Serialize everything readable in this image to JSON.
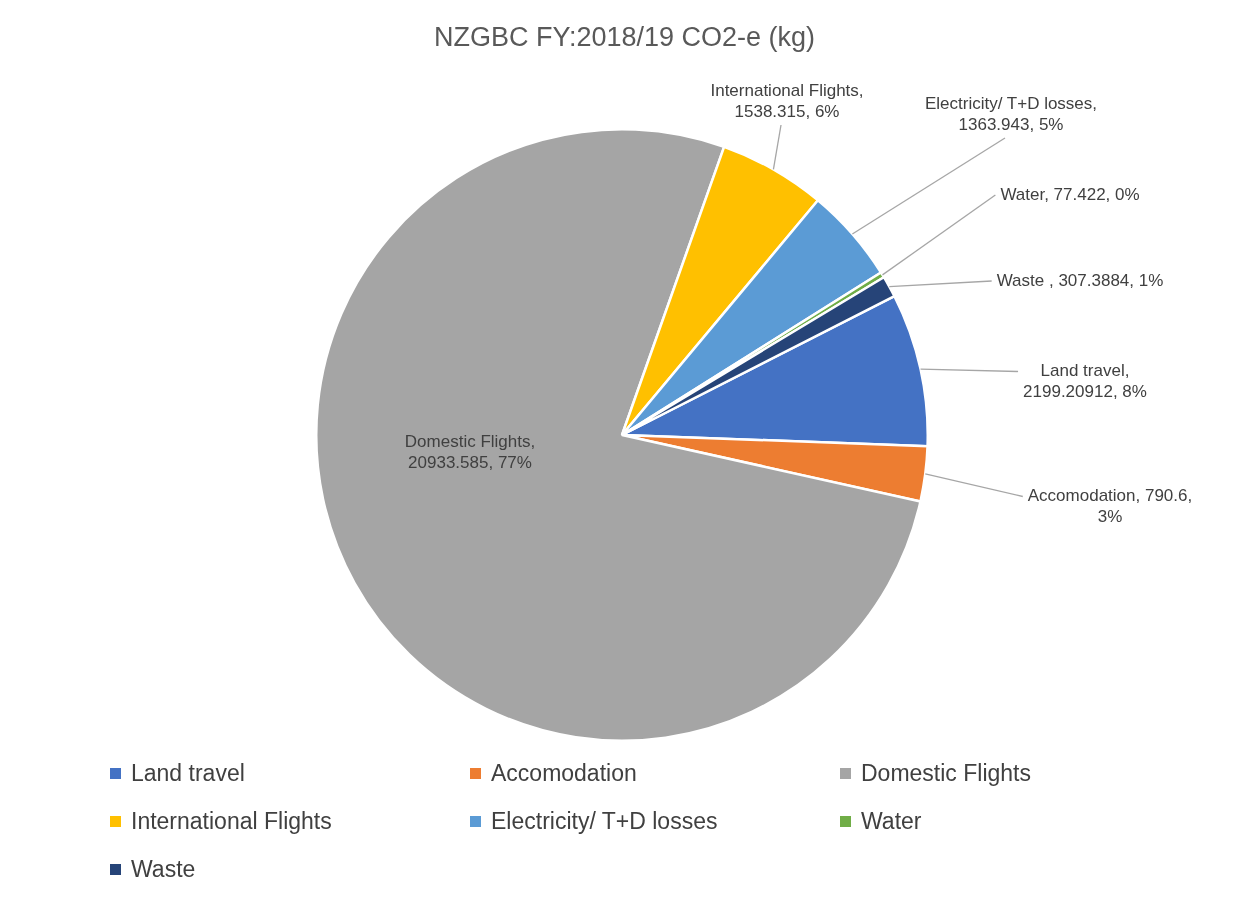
{
  "chart_data": {
    "type": "pie",
    "title": "NZGBC FY:2018/19 CO2-e (kg)",
    "categories": [
      "Land travel",
      "Accomodation",
      "Domestic Flights",
      "International Flights",
      "Electricity/ T+D losses",
      "Water",
      "Waste"
    ],
    "values": [
      2199.20912,
      790.6,
      20933.585,
      1538.315,
      1363.943,
      77.422,
      307.3884
    ],
    "value_labels": [
      "Land travel, 2199.20912, 8%",
      "Accomodation, 790.6, 3%",
      "Domestic Flights, 20933.585, 77%",
      "International Flights, 1538.315, 6%",
      "Electricity/ T+D losses, 1363.943, 5%",
      "Water, 77.422, 0%",
      "Waste , 307.3884, 1%"
    ],
    "colors": [
      "#4472c4",
      "#ed7d31",
      "#a5a5a5",
      "#ffc000",
      "#5b9bd5",
      "#70ad47",
      "#264478"
    ],
    "legend": "bottom"
  }
}
